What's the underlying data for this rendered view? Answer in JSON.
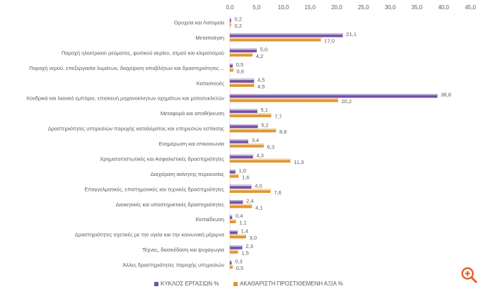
{
  "chart_data": {
    "type": "bar",
    "orientation": "horizontal",
    "categories": [
      "Ορυχεία και Λατομεία",
      "Μεταποίηση",
      "Παροχή ηλεκτρικού ρεύματος, φυσικού αερίου, ατμού και κλιματισμού",
      "Παροχή νερού, επεξεργασία λυμάτων, διαχείριση αποβλήτων και δραστηριότητες…",
      "Κατασκευές",
      "Χονδρικό και λιανικό εμπόριο, επισκευή μηχανοκίνητων οχημάτων και μοτοσυκλετών",
      "Μεταφορά και αποθήκευση",
      "Δραστηριότητες υπηρεσιών παροχής καταλύματος και υπηρεσιών εστίασης",
      "Ενημέρωση και επικοινωνία",
      "Χρηματοπιστωτικές και Ασφαλιστικές δραστηριότητες",
      "Διαχείριση ακίνητης περιουσίας",
      "Επαγγελματικές, επιστημονικές και τεχνικές δραστηριότητες",
      "Διοικητικές και υποστηρικτικές δραστηριότητες",
      "Εκπαίδευση",
      "Δραστηριότητες σχετικές με την υγεία και την κοινωνική μέριμνα",
      "Τέχνες, διασκέδαση και ψυχαγωγία",
      "Άλλες δραστηριότητες παροχής υπηρεσιών"
    ],
    "series": [
      {
        "name": "ΚΥΚΛΟΣ ΕΡΓΑΣΙΩΝ %",
        "color": "#7452a6",
        "values": [
          0.2,
          21.1,
          5.0,
          0.5,
          4.5,
          38.8,
          5.1,
          5.2,
          3.4,
          4.3,
          1.0,
          4.0,
          2.4,
          0.4,
          1.4,
          2.3,
          0.3
        ]
      },
      {
        "name": "ΑΚΑΘΑΡΙΣΤΗ ΠΡΟΣΤΙΘΕΜΕΝΗ ΑΞΙΑ %",
        "color": "#e0962e",
        "values": [
          0.2,
          17.0,
          4.2,
          0.6,
          4.5,
          20.2,
          7.7,
          8.6,
          6.3,
          11.3,
          1.6,
          7.6,
          4.1,
          1.1,
          3.0,
          1.5,
          0.5
        ]
      }
    ],
    "xlim": [
      0,
      45
    ],
    "xticks": [
      "0,0",
      "5,0",
      "10,0",
      "15,0",
      "20,0",
      "25,0",
      "30,0",
      "35,0",
      "40,0",
      "45,0"
    ],
    "grid": false,
    "legend": "bottom",
    "data_labels": true
  },
  "zoom_icon": "zoom-in-icon"
}
